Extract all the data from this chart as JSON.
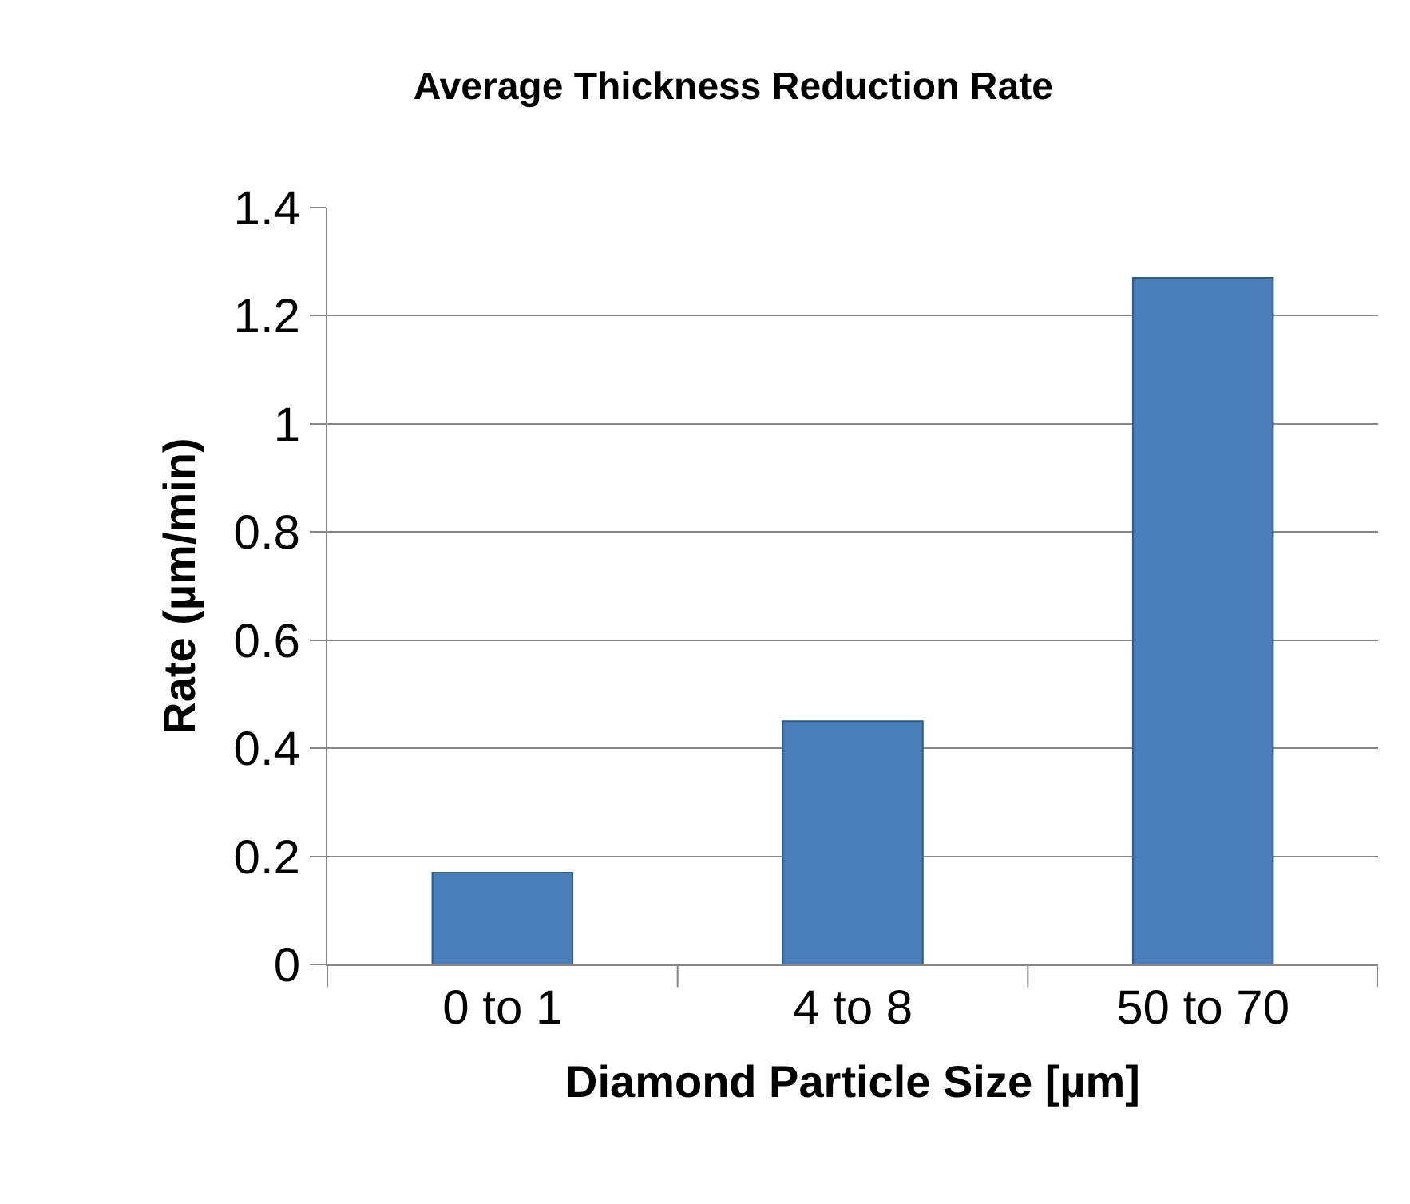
{
  "chart_data": {
    "type": "bar",
    "title": "Average Thickness Reduction Rate",
    "xlabel": "Diamond Particle Size [µm]",
    "ylabel": "Rate (µm/min)",
    "categories": [
      "0 to 1",
      "4 to 8",
      "50 to 70"
    ],
    "values": [
      0.17,
      0.45,
      1.27
    ],
    "color": "#4a7ebb",
    "ylim": [
      0,
      1.4
    ],
    "yticks": [
      0,
      0.2,
      0.4,
      0.6,
      0.8,
      1,
      1.2,
      1.4
    ],
    "grid": "y"
  }
}
